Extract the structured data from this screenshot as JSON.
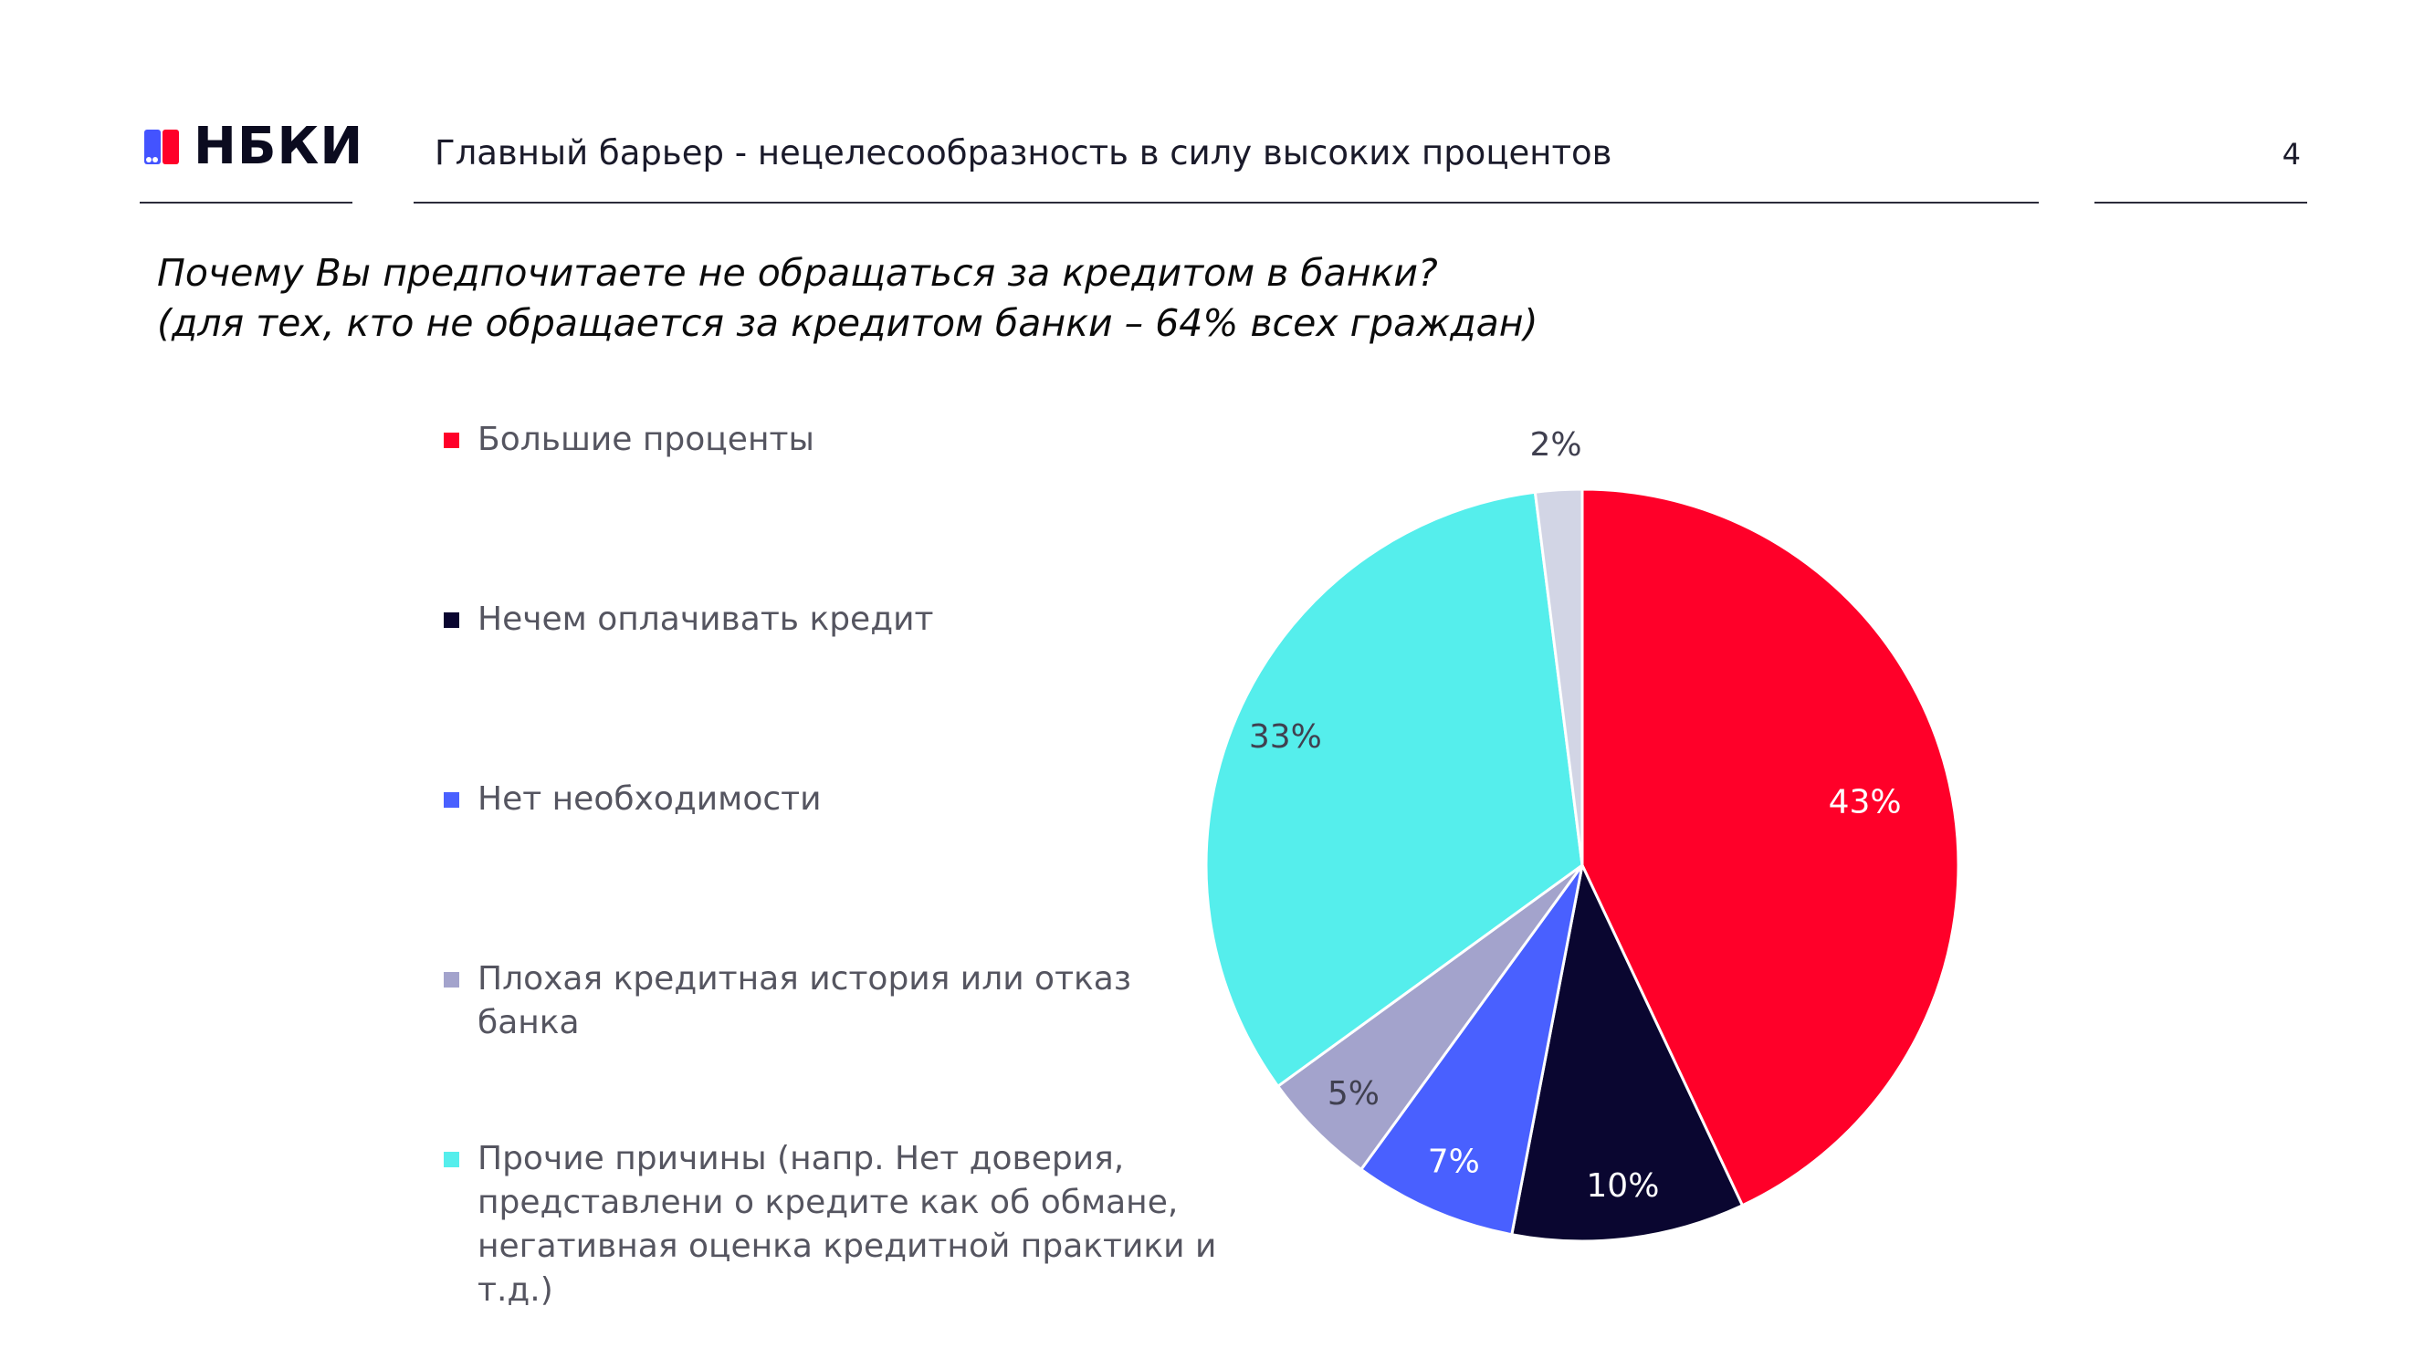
{
  "logo": {
    "text": "НБКИ",
    "colors": [
      "#ff0029",
      "#4353ff",
      "#0a0a2a"
    ]
  },
  "header": {
    "title": "Главный барьер - нецелесообразность в силу высоких процентов",
    "page_number": "4"
  },
  "question": {
    "line1": "Почему Вы предпочитаете не обращаться за кредитом в банки?",
    "line2": "(для тех, кто не обращается за кредитом банки – 64% всех граждан)"
  },
  "chart_data": {
    "type": "pie",
    "title": "",
    "legend_position": "left",
    "start_angle": "12 o'clock",
    "direction": "clockwise",
    "slices": [
      {
        "label": "Большие проценты",
        "value": 43,
        "display": "43%",
        "color": "#ff0029",
        "label_color": "#ffffff"
      },
      {
        "label": "Нечем оплачивать кредит",
        "value": 10,
        "display": "10%",
        "color": "#0a0630",
        "label_color": "#ffffff"
      },
      {
        "label": "Нет необходимости",
        "value": 7,
        "display": "7%",
        "color": "#4960ff",
        "label_color": "#ffffff"
      },
      {
        "label": "Плохая кредитная история или отказ банка",
        "value": 5,
        "display": "5%",
        "color": "#a3a3cc",
        "label_color": "#404050"
      },
      {
        "label": "Прочие причины (напр. Нет доверия, представлени о кредите как об обмане, негативная оценка кредитной практики и т.д.)",
        "value": 33,
        "display": "33%",
        "color": "#55eeec",
        "label_color": "#404050"
      },
      {
        "label": "",
        "value": 2,
        "display": "2%",
        "color": "#d2d5e5",
        "label_color": "#404050"
      }
    ]
  }
}
